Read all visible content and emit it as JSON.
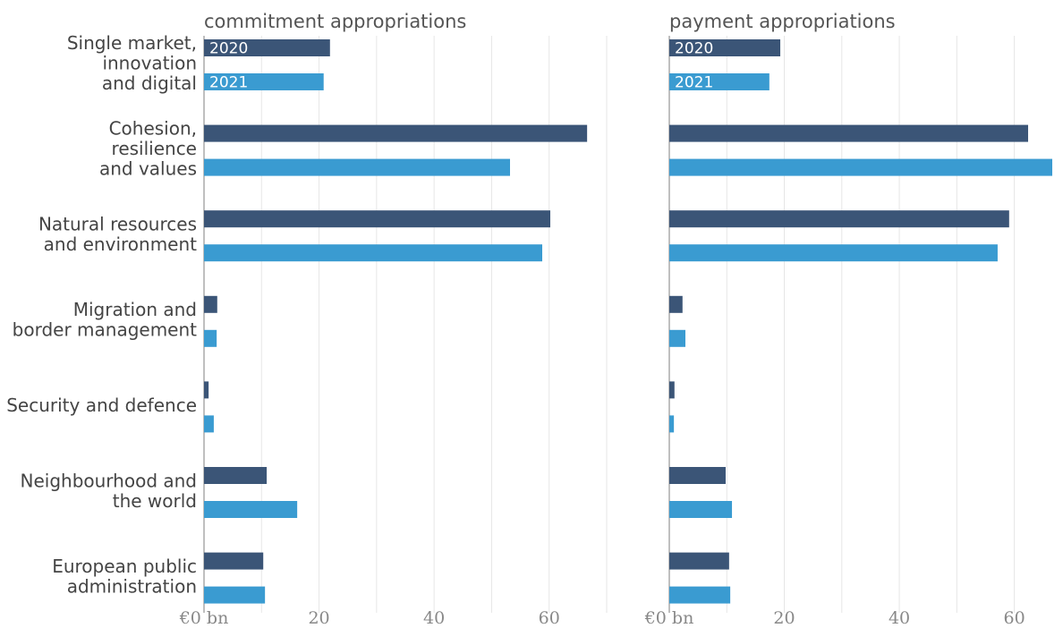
{
  "chart_data": [
    {
      "type": "bar",
      "orientation": "horizontal",
      "title": "commitment appropriations",
      "categories": [
        [
          "Single market,",
          "innovation",
          "and digital"
        ],
        [
          "Cohesion,",
          "resilience",
          "and values"
        ],
        [
          "Natural resources",
          "and environment"
        ],
        [
          "Migration and",
          "border management"
        ],
        [
          "Security and defence"
        ],
        [
          "Neighbourhood and",
          "the world"
        ],
        [
          "European public",
          "administration"
        ]
      ],
      "series": [
        {
          "name": "2020",
          "color": "#3b5577",
          "values": [
            21.9,
            66.6,
            60.2,
            2.3,
            0.8,
            10.9,
            10.3
          ]
        },
        {
          "name": "2021",
          "color": "#3a9bd1",
          "values": [
            20.8,
            53.2,
            58.8,
            2.2,
            1.7,
            16.2,
            10.6
          ]
        }
      ],
      "xlim": [
        0,
        70
      ],
      "xticks": [
        {
          "value": 0,
          "label": "€0 bn"
        },
        20,
        40,
        60
      ],
      "xgrid": [
        10,
        20,
        30,
        40,
        50,
        60,
        70
      ]
    },
    {
      "type": "bar",
      "orientation": "horizontal",
      "title": "payment appropriations",
      "series": [
        {
          "name": "2020",
          "color": "#3b5577",
          "values": [
            19.3,
            62.4,
            59.1,
            2.3,
            0.9,
            9.8,
            10.4
          ]
        },
        {
          "name": "2021",
          "color": "#3a9bd1",
          "values": [
            17.4,
            66.6,
            57.1,
            2.8,
            0.8,
            10.9,
            10.6
          ]
        }
      ],
      "xlim": [
        0,
        68
      ],
      "xticks": [
        {
          "value": 0,
          "label": "€0 bn"
        },
        20,
        40,
        60
      ],
      "xgrid": [
        10,
        20,
        30,
        40,
        50,
        60
      ]
    }
  ]
}
